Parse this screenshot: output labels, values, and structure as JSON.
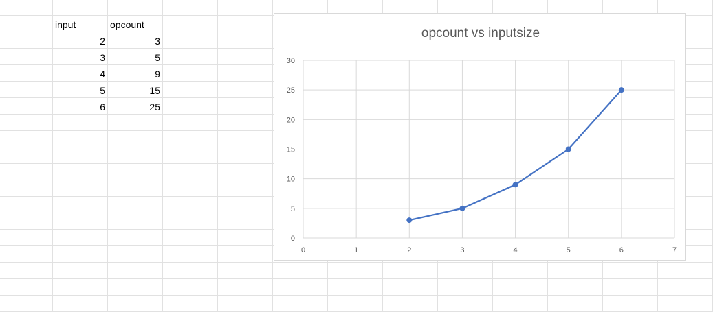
{
  "sheet": {
    "headers": {
      "col_b": "input",
      "col_c": "opcount"
    },
    "rows": [
      {
        "input": "2",
        "opcount": "3"
      },
      {
        "input": "3",
        "opcount": "5"
      },
      {
        "input": "4",
        "opcount": "9"
      },
      {
        "input": "5",
        "opcount": "15"
      },
      {
        "input": "6",
        "opcount": "25"
      }
    ]
  },
  "chart_data": {
    "type": "scatter",
    "title": "opcount vs inputsize",
    "xlabel": "",
    "ylabel": "",
    "x": [
      2,
      3,
      4,
      5,
      6
    ],
    "y": [
      3,
      5,
      9,
      15,
      25
    ],
    "xlim": [
      0,
      7
    ],
    "ylim": [
      0,
      30
    ],
    "xticks": [
      0,
      1,
      2,
      3,
      4,
      5,
      6,
      7
    ],
    "yticks": [
      0,
      5,
      10,
      15,
      20,
      25,
      30
    ],
    "lines": true,
    "markers": true,
    "grid": true,
    "legend": "none",
    "series_color": "#4472c4",
    "gridline_color": "#d9d9d9"
  }
}
